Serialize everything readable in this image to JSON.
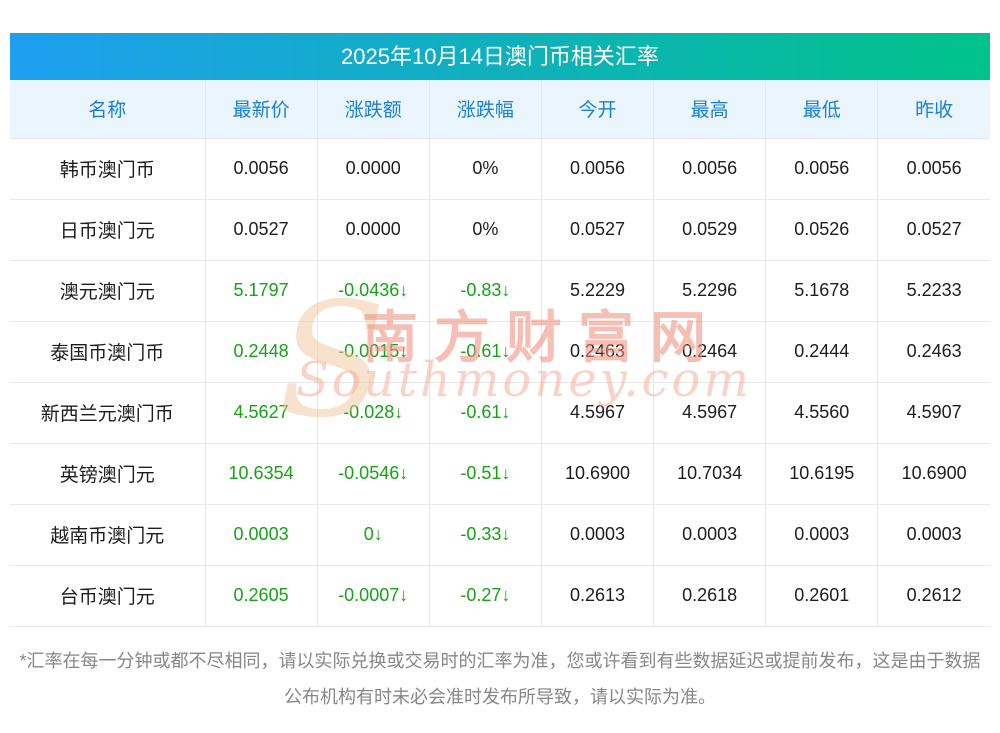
{
  "chart_data": {
    "type": "table",
    "title": "2025年10月14日澳门币相关汇率",
    "columns": [
      {
        "key": "name",
        "label": "名称"
      },
      {
        "key": "latest",
        "label": "最新价"
      },
      {
        "key": "change",
        "label": "涨跌额"
      },
      {
        "key": "change_pct",
        "label": "涨跌幅"
      },
      {
        "key": "open",
        "label": "今开"
      },
      {
        "key": "high",
        "label": "最高"
      },
      {
        "key": "low",
        "label": "最低"
      },
      {
        "key": "prev_close",
        "label": "昨收"
      }
    ],
    "highlight_keys": [
      "latest",
      "change",
      "change_pct"
    ],
    "rows": [
      {
        "name": "韩币澳门币",
        "latest": "0.0056",
        "change": "0.0000",
        "change_pct": "0%",
        "open": "0.0056",
        "high": "0.0056",
        "low": "0.0056",
        "prev_close": "0.0056",
        "trend": "flat"
      },
      {
        "name": "日币澳门元",
        "latest": "0.0527",
        "change": "0.0000",
        "change_pct": "0%",
        "open": "0.0527",
        "high": "0.0529",
        "low": "0.0526",
        "prev_close": "0.0527",
        "trend": "flat"
      },
      {
        "name": "澳元澳门元",
        "latest": "5.1797",
        "change": "-0.0436↓",
        "change_pct": "-0.83↓",
        "open": "5.2229",
        "high": "5.2296",
        "low": "5.1678",
        "prev_close": "5.2233",
        "trend": "down"
      },
      {
        "name": "泰国币澳门币",
        "latest": "0.2448",
        "change": "-0.0015↓",
        "change_pct": "-0.61↓",
        "open": "0.2463",
        "high": "0.2464",
        "low": "0.2444",
        "prev_close": "0.2463",
        "trend": "down"
      },
      {
        "name": "新西兰元澳门币",
        "latest": "4.5627",
        "change": "-0.028↓",
        "change_pct": "-0.61↓",
        "open": "4.5967",
        "high": "4.5967",
        "low": "4.5560",
        "prev_close": "4.5907",
        "trend": "down"
      },
      {
        "name": "英镑澳门元",
        "latest": "10.6354",
        "change": "-0.0546↓",
        "change_pct": "-0.51↓",
        "open": "10.6900",
        "high": "10.7034",
        "low": "10.6195",
        "prev_close": "10.6900",
        "trend": "down"
      },
      {
        "name": "越南币澳门元",
        "latest": "0.0003",
        "change": "0↓",
        "change_pct": "-0.33↓",
        "open": "0.0003",
        "high": "0.0003",
        "low": "0.0003",
        "prev_close": "0.0003",
        "trend": "down"
      },
      {
        "name": "台币澳门元",
        "latest": "0.2605",
        "change": "-0.0007↓",
        "change_pct": "-0.27↓",
        "open": "0.2613",
        "high": "0.2618",
        "low": "0.2601",
        "prev_close": "0.2612",
        "trend": "down"
      }
    ]
  },
  "watermark": {
    "logo_letter": "S",
    "cn": "南方财富网",
    "en": "Southmoney.com"
  },
  "footnote": "*汇率在每一分钟或都不尽相同，请以实际兑换或交易时的汇率为准，您或许看到有些数据延迟或提前发布，这是由于数据公布机构有时未必会准时发布所导致，请以实际为准。",
  "colors": {
    "title_gradient_left": "#1e9ff0",
    "title_gradient_right": "#00c289",
    "header_bg": "#eaf5fe",
    "header_text": "#1a7fd9",
    "down_green": "#16a316",
    "border": "#e8e8e8",
    "footnote_text": "#878787"
  }
}
